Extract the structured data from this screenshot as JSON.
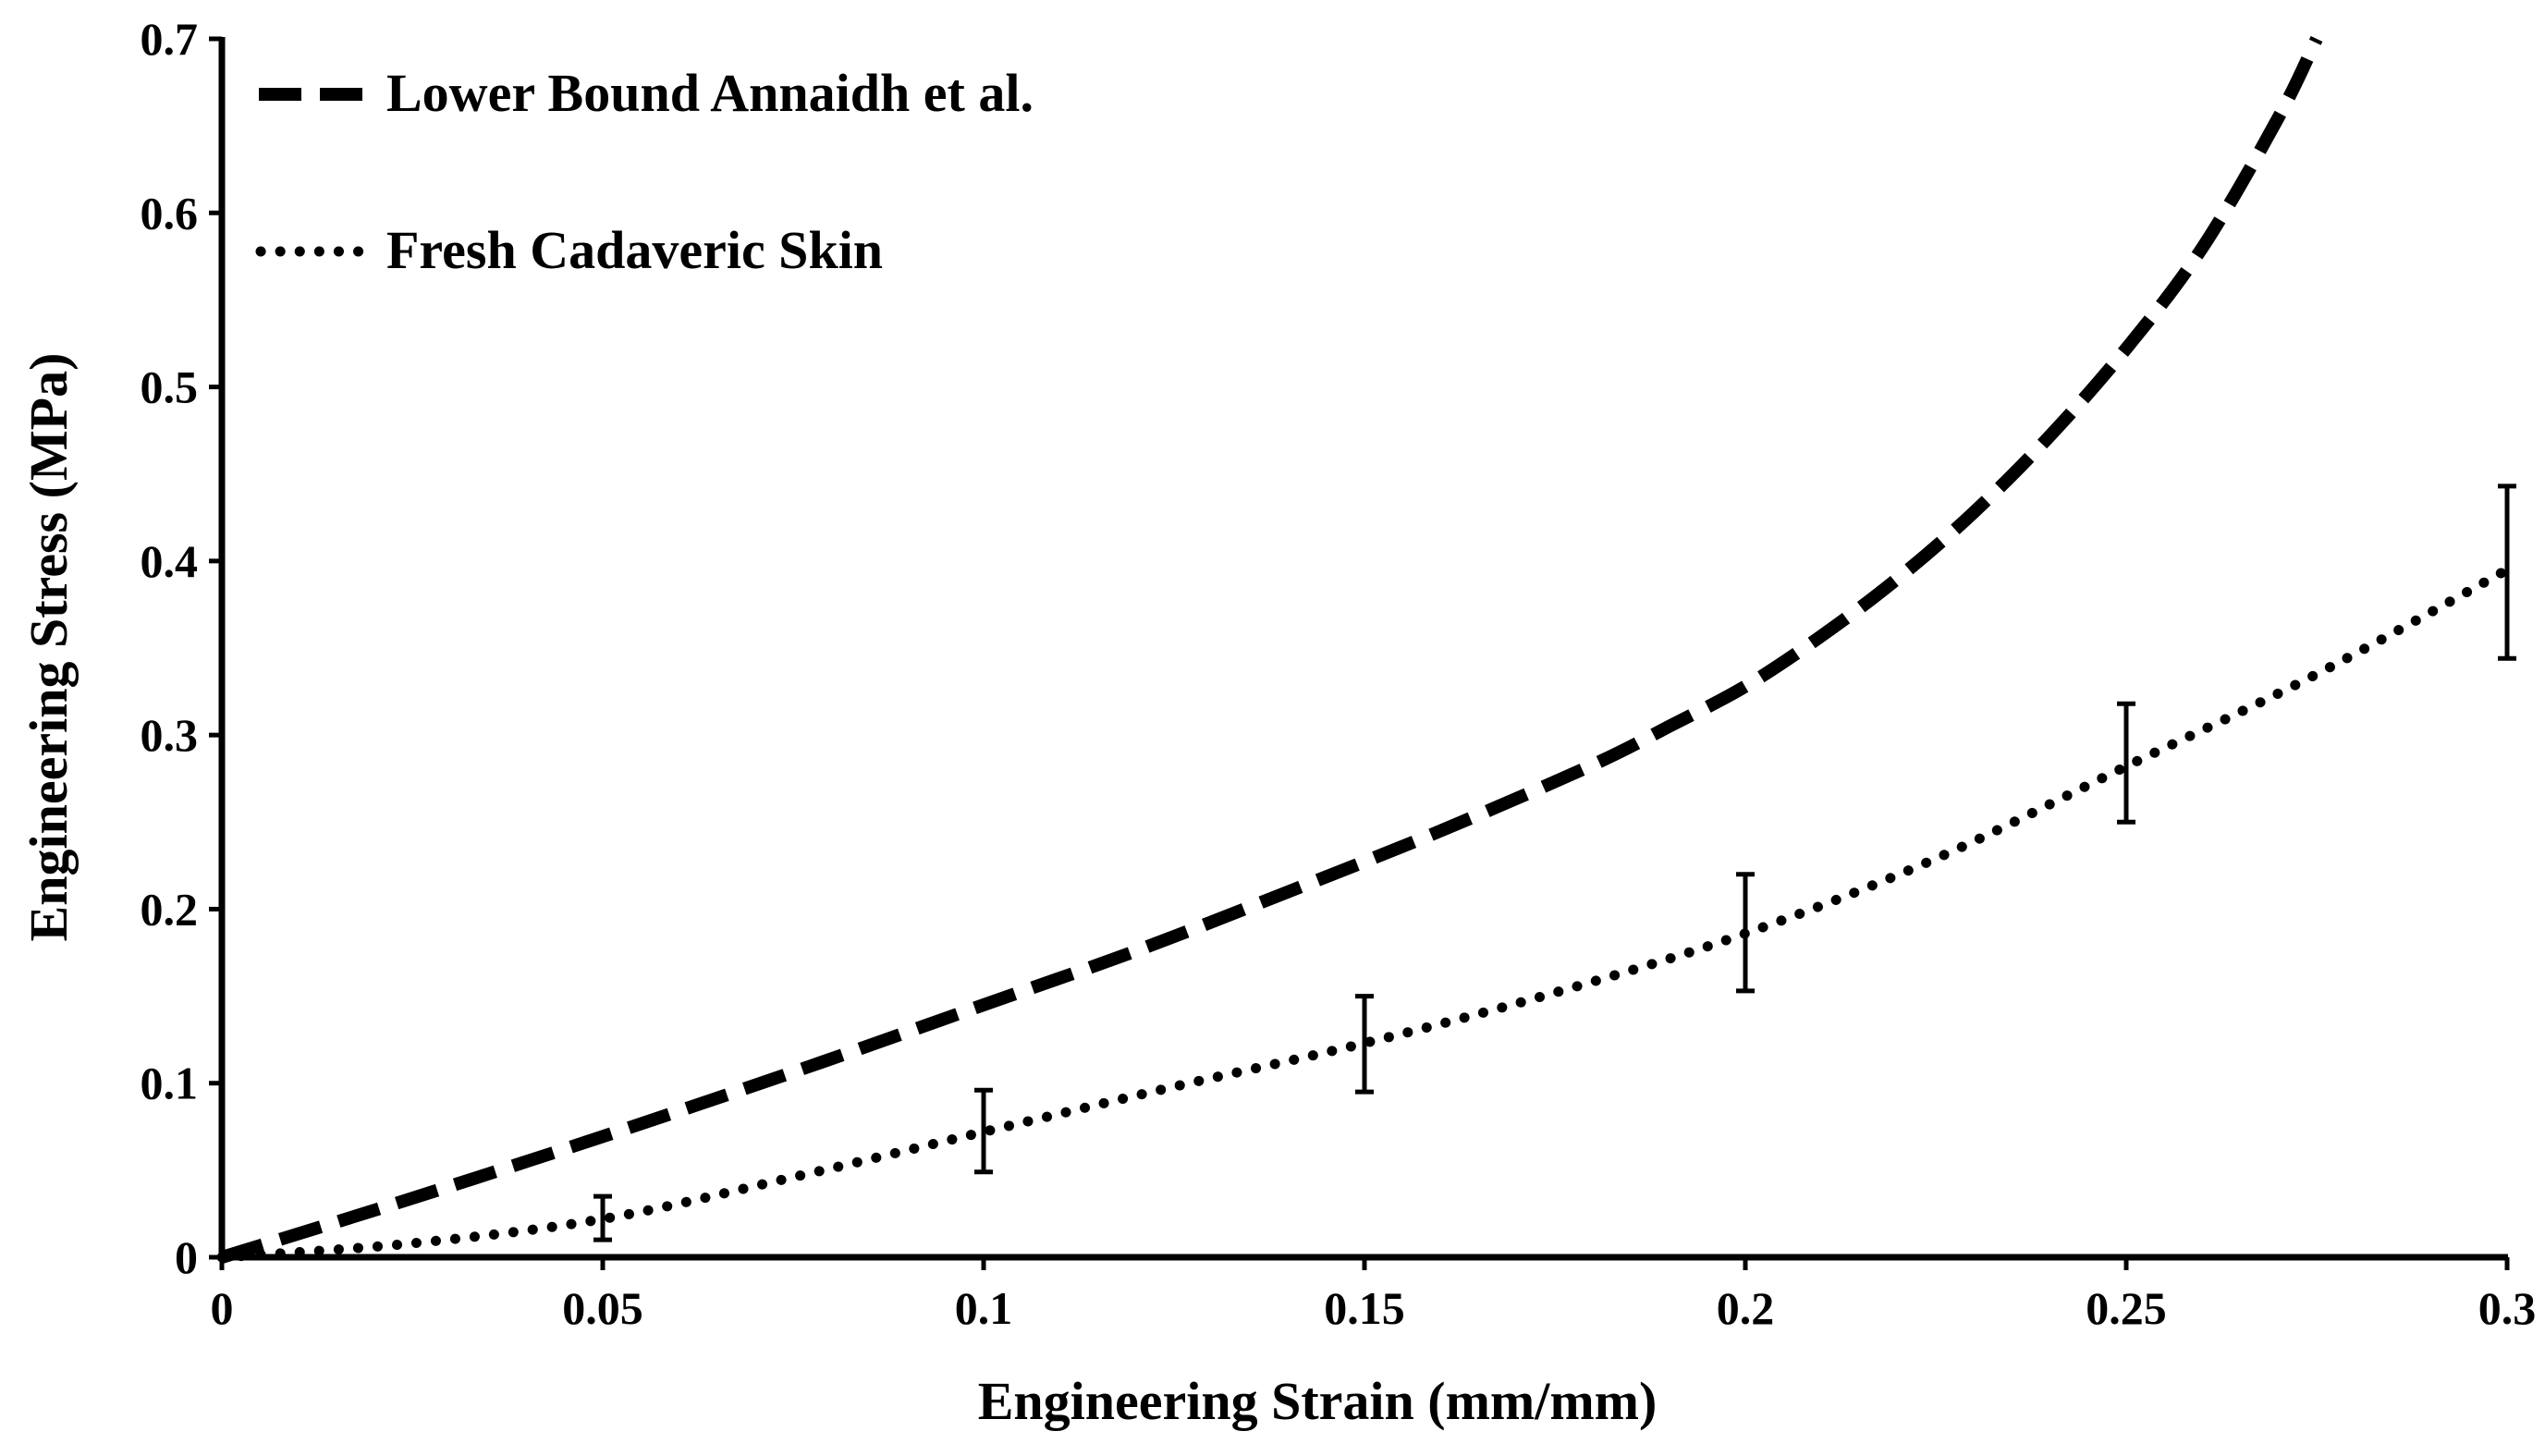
{
  "chart_data": {
    "type": "line",
    "title": "",
    "xlabel": "Engineering Strain (mm/mm)",
    "ylabel": "Engineering Stress (MPa)",
    "xlim": [
      0,
      0.3
    ],
    "ylim": [
      0,
      0.7
    ],
    "grid": false,
    "legend_position": "top-left",
    "x_ticks": [
      0,
      0.05,
      0.1,
      0.15,
      0.2,
      0.25,
      0.3
    ],
    "x_tick_labels": [
      "0",
      "0.05",
      "0.1",
      "0.15",
      "0.2",
      "0.25",
      "0.3"
    ],
    "y_ticks": [
      0,
      0.1,
      0.2,
      0.3,
      0.4,
      0.5,
      0.6,
      0.7
    ],
    "y_tick_labels": [
      "0",
      "0.1",
      "0.2",
      "0.3",
      "0.4",
      "0.5",
      "0.6",
      "0.7"
    ],
    "series": [
      {
        "name": "Lower Bound Annaidh et al.",
        "style": "dashed",
        "color": "#000000",
        "x": [
          0,
          0.02,
          0.04,
          0.06,
          0.08,
          0.1,
          0.12,
          0.14,
          0.16,
          0.18,
          0.19,
          0.2,
          0.21,
          0.22,
          0.23,
          0.24,
          0.25,
          0.26,
          0.27,
          0.275
        ],
        "y": [
          0,
          0.027,
          0.055,
          0.084,
          0.114,
          0.145,
          0.176,
          0.21,
          0.245,
          0.283,
          0.305,
          0.328,
          0.357,
          0.39,
          0.428,
          0.472,
          0.522,
          0.58,
          0.655,
          0.7
        ]
      },
      {
        "name": "Fresh Cadaveric Skin",
        "style": "dotted",
        "color": "#000000",
        "x": [
          0,
          0.025,
          0.05,
          0.075,
          0.1,
          0.125,
          0.15,
          0.175,
          0.2,
          0.225,
          0.25,
          0.275,
          0.3
        ],
        "y": [
          0,
          0.008,
          0.022,
          0.046,
          0.072,
          0.098,
          0.123,
          0.152,
          0.186,
          0.229,
          0.282,
          0.335,
          0.395
        ],
        "error_bars": [
          {
            "x": 0.05,
            "y": 0.022,
            "low": 0.01,
            "high": 0.035
          },
          {
            "x": 0.1,
            "y": 0.072,
            "low": 0.049,
            "high": 0.096
          },
          {
            "x": 0.15,
            "y": 0.123,
            "low": 0.095,
            "high": 0.15
          },
          {
            "x": 0.2,
            "y": 0.186,
            "low": 0.153,
            "high": 0.22
          },
          {
            "x": 0.25,
            "y": 0.282,
            "low": 0.25,
            "high": 0.318
          },
          {
            "x": 0.3,
            "y": 0.395,
            "low": 0.344,
            "high": 0.443
          }
        ]
      }
    ]
  }
}
